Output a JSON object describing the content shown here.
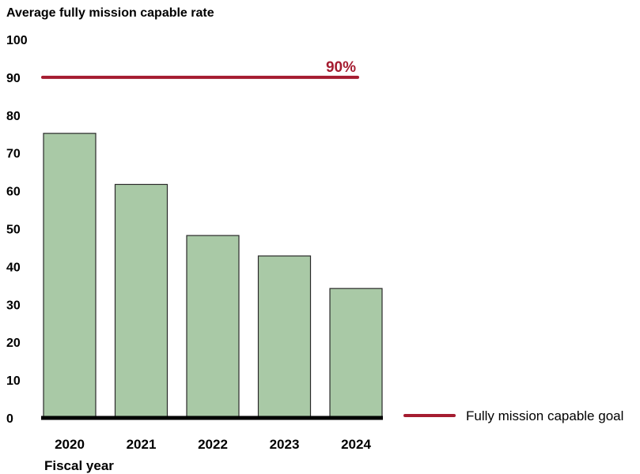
{
  "chart_data": {
    "type": "bar",
    "ylabel": "Average fully mission capable rate",
    "xlabel": "Fiscal year",
    "categories": [
      "2020",
      "2021",
      "2022",
      "2023",
      "2024"
    ],
    "values": [
      75.2,
      61.7,
      48.2,
      42.8,
      34.2
    ],
    "ylim": [
      0,
      100
    ],
    "yticks": [
      "0",
      "10",
      "20",
      "30",
      "40",
      "50",
      "60",
      "70",
      "80",
      "90",
      "100"
    ],
    "grid": false,
    "bar_color": "#a9c9a6",
    "bar_stroke": "#2a2a2a",
    "goal": {
      "name": "Fully mission capable goal",
      "value": 90,
      "label": "90%",
      "color": "#a51c30"
    },
    "legend_position": "bottom-right"
  }
}
